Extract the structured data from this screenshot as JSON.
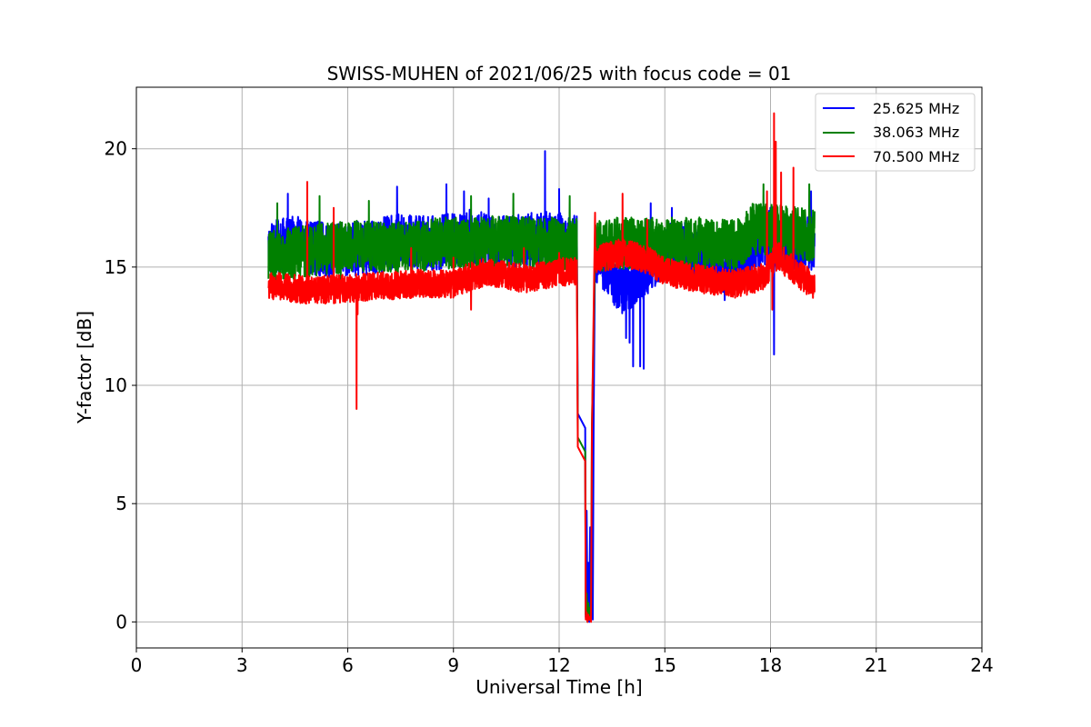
{
  "chart_data": {
    "type": "line",
    "title": "SWISS-MUHEN of 2021/06/25 with focus code = 01",
    "xlabel": "Universal Time [h]",
    "ylabel": "Y-factor [dB]",
    "xlim": [
      0,
      24
    ],
    "ylim": [
      -1.1,
      22.6
    ],
    "xticks": [
      0,
      3,
      6,
      9,
      12,
      15,
      18,
      21,
      24
    ],
    "yticks": [
      0,
      5,
      10,
      15,
      20
    ],
    "grid": true,
    "legend_position": "top-right",
    "series": [
      {
        "name": "25.625 MHz",
        "color": "#0000ff",
        "base": [
          [
            3.75,
            15.8
          ],
          [
            4.5,
            16.0
          ],
          [
            5.5,
            15.7
          ],
          [
            6.5,
            15.8
          ],
          [
            7.5,
            16.1
          ],
          [
            8.5,
            16.0
          ],
          [
            9.5,
            16.3
          ],
          [
            10.5,
            16.0
          ],
          [
            11.5,
            16.2
          ],
          [
            12.5,
            16.1
          ],
          [
            12.6,
            16.0
          ],
          [
            12.75,
            15.7
          ],
          [
            13.2,
            15.3
          ],
          [
            13.8,
            14.0
          ],
          [
            14.3,
            14.6
          ],
          [
            15.0,
            15.8
          ],
          [
            16.0,
            15.7
          ],
          [
            16.7,
            15.0
          ],
          [
            17.2,
            15.5
          ],
          [
            17.5,
            15.8
          ],
          [
            18.0,
            16.4
          ],
          [
            18.5,
            16.0
          ],
          [
            19.25,
            16.0
          ]
        ],
        "noise": 1.15,
        "spikes": [
          [
            4.3,
            18.1
          ],
          [
            4.0,
            17.3
          ],
          [
            7.4,
            18.4
          ],
          [
            8.8,
            18.5
          ],
          [
            9.3,
            18.2
          ],
          [
            10.0,
            17.9
          ],
          [
            11.6,
            19.9
          ],
          [
            12.0,
            18.3
          ],
          [
            13.9,
            12.0
          ],
          [
            14.0,
            11.8
          ],
          [
            14.1,
            10.8
          ],
          [
            14.3,
            10.8
          ],
          [
            14.4,
            10.7
          ],
          [
            14.6,
            17.7
          ],
          [
            15.2,
            17.5
          ],
          [
            16.7,
            13.6
          ],
          [
            17.3,
            14.5
          ],
          [
            18.1,
            11.3
          ],
          [
            19.15,
            18.2
          ]
        ]
      },
      {
        "name": "38.063 MHz",
        "color": "#008000",
        "base": [
          [
            3.75,
            15.4
          ],
          [
            4.5,
            15.6
          ],
          [
            5.5,
            15.8
          ],
          [
            6.5,
            15.9
          ],
          [
            7.5,
            15.8
          ],
          [
            8.5,
            16.0
          ],
          [
            9.5,
            16.0
          ],
          [
            10.5,
            16.1
          ],
          [
            11.5,
            16.0
          ],
          [
            12.5,
            16.0
          ],
          [
            12.75,
            15.8
          ],
          [
            13.5,
            16.0
          ],
          [
            14.5,
            16.0
          ],
          [
            15.5,
            16.0
          ],
          [
            16.5,
            16.0
          ],
          [
            17.0,
            15.9
          ],
          [
            17.5,
            16.6
          ],
          [
            18.5,
            16.5
          ],
          [
            19.25,
            16.3
          ]
        ],
        "noise": 1.1,
        "spikes": [
          [
            4.0,
            17.7
          ],
          [
            5.2,
            18.0
          ],
          [
            6.6,
            17.8
          ],
          [
            9.5,
            18.0
          ],
          [
            10.7,
            18.1
          ],
          [
            12.3,
            18.0
          ],
          [
            17.8,
            18.5
          ],
          [
            19.1,
            18.5
          ],
          [
            4.5,
            13.8
          ],
          [
            5.8,
            14.0
          ]
        ]
      },
      {
        "name": "70.500 MHz",
        "color": "#ff0000",
        "base": [
          [
            3.75,
            14.2
          ],
          [
            5.0,
            14.0
          ],
          [
            6.0,
            14.1
          ],
          [
            7.0,
            14.2
          ],
          [
            8.0,
            14.3
          ],
          [
            9.0,
            14.3
          ],
          [
            9.5,
            14.6
          ],
          [
            10.0,
            14.8
          ],
          [
            11.0,
            14.5
          ],
          [
            12.0,
            14.8
          ],
          [
            12.5,
            14.8
          ],
          [
            12.75,
            15.0
          ],
          [
            13.2,
            15.4
          ],
          [
            13.8,
            15.6
          ],
          [
            14.5,
            15.3
          ],
          [
            15.0,
            14.8
          ],
          [
            16.0,
            14.5
          ],
          [
            17.0,
            14.3
          ],
          [
            17.8,
            14.6
          ],
          [
            18.2,
            15.5
          ],
          [
            18.7,
            14.8
          ],
          [
            19.25,
            14.2
          ]
        ],
        "noise": 0.6,
        "spikes": [
          [
            4.85,
            18.6
          ],
          [
            5.6,
            17.5
          ],
          [
            6.25,
            9.0
          ],
          [
            6.28,
            13.0
          ],
          [
            7.8,
            15.8
          ],
          [
            9.5,
            13.2
          ],
          [
            9.0,
            15.4
          ],
          [
            11.0,
            15.8
          ],
          [
            12.0,
            15.6
          ],
          [
            13.0,
            17.3
          ],
          [
            13.8,
            18.1
          ],
          [
            14.5,
            17.0
          ],
          [
            18.1,
            21.5
          ],
          [
            18.15,
            20.3
          ],
          [
            18.3,
            19.0
          ],
          [
            18.65,
            19.2
          ],
          [
            17.9,
            18.2
          ],
          [
            18.05,
            13.2
          ]
        ]
      }
    ],
    "gap": {
      "drop_times": [
        12.5,
        12.75,
        13.02
      ],
      "drop_levels": [
        [
          8.8,
          8.7
        ],
        [
          7.8,
          8.3
        ],
        [
          7.4,
          8.0
        ]
      ],
      "low_burst": [
        [
          0.2,
          4.7,
          0.1,
          2.5,
          0.0,
          4.0,
          0.5,
          3.0,
          0.1
        ],
        [
          0.3,
          1.2,
          0.0,
          0.8,
          0.1,
          0.6,
          0.2
        ],
        [
          0.1,
          0.4,
          0.0,
          0.3,
          0.1,
          0.2,
          0.0
        ]
      ]
    }
  }
}
